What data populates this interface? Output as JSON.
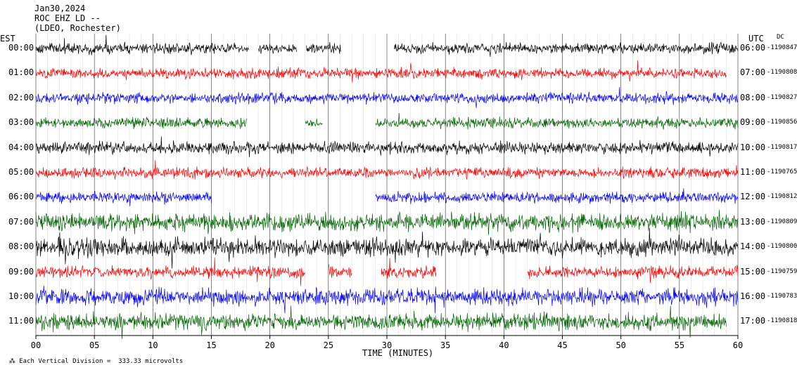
{
  "header": {
    "date": "Jan30,2024",
    "station": "ROC EHZ LD --",
    "network": "(LDEO, Rochester)"
  },
  "left_axis_label": "EST",
  "right_axis_label": "UTC",
  "dc_label": "DC",
  "footer": "Each Vertical Division =  333.33 microvolts",
  "chart_data": {
    "type": "line",
    "title": "",
    "xlabel": "TIME (MINUTES)",
    "ylabel": "",
    "xlim": [
      0,
      60
    ],
    "x_ticks": [
      "00",
      "05",
      "10",
      "15",
      "20",
      "25",
      "30",
      "35",
      "40",
      "45",
      "50",
      "55",
      "60"
    ],
    "trace_colors": [
      "#000000",
      "#ff0000",
      "#0000ff",
      "#006400"
    ],
    "traces": [
      {
        "est": "00:00",
        "utc": "06:00",
        "dc": "-1190847",
        "amp": 7,
        "gaps": [
          [
            18.2,
            19.0
          ],
          [
            22.3,
            23.1
          ],
          [
            26.1,
            30.6
          ]
        ],
        "end": 60
      },
      {
        "est": "01:00",
        "utc": "07:00",
        "dc": "-1190808",
        "amp": 7,
        "gaps": [],
        "end": 59
      },
      {
        "est": "02:00",
        "utc": "08:00",
        "dc": "-1190827",
        "amp": 7,
        "gaps": [],
        "end": 60
      },
      {
        "est": "03:00",
        "utc": "09:00",
        "dc": "-1190856",
        "amp": 7,
        "gaps": [
          [
            18.0,
            23.0
          ],
          [
            24.5,
            29.0
          ]
        ],
        "end": 60
      },
      {
        "est": "04:00",
        "utc": "10:00",
        "dc": "-1190817",
        "amp": 8,
        "gaps": [],
        "end": 60
      },
      {
        "est": "05:00",
        "utc": "11:00",
        "dc": "-1190765",
        "amp": 7,
        "gaps": [],
        "end": 60
      },
      {
        "est": "06:00",
        "utc": "12:00",
        "dc": "-1190812",
        "amp": 7,
        "gaps": [
          [
            15.0,
            29.0
          ]
        ],
        "end": 60
      },
      {
        "est": "07:00",
        "utc": "13:00",
        "dc": "-1190809",
        "amp": 12,
        "gaps": [],
        "end": 60
      },
      {
        "est": "08:00",
        "utc": "14:00",
        "dc": "-1190800",
        "amp": 12,
        "gaps": [],
        "end": 60
      },
      {
        "est": "09:00",
        "utc": "15:00",
        "dc": "-1190759",
        "amp": 8,
        "gaps": [
          [
            23.0,
            25.0
          ],
          [
            27.0,
            29.5
          ],
          [
            34.2,
            42.0
          ]
        ],
        "end": 60
      },
      {
        "est": "10:00",
        "utc": "16:00",
        "dc": "-1190783",
        "amp": 11,
        "gaps": [],
        "end": 60
      },
      {
        "est": "11:00",
        "utc": "17:00",
        "dc": "-1190818",
        "amp": 11,
        "gaps": [],
        "end": 59
      }
    ]
  }
}
